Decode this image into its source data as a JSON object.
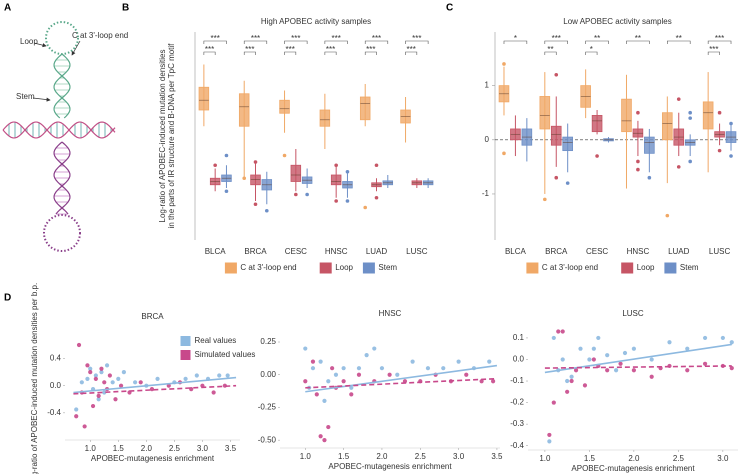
{
  "panel_labels": [
    "A",
    "B",
    "C",
    "D"
  ],
  "diagram": {
    "labels": [
      "Loop",
      "C at 3'-loop end",
      "Stem"
    ]
  },
  "chart_data": [
    {
      "type": "box",
      "title": "High APOBEC activity samples",
      "ylabel": [
        "Log-ratio of APOBEC-induced mutation densities",
        "in the parts of IR structure and B-DNA per TpC motif"
      ],
      "categories": [
        "BLCA",
        "BRCA",
        "CESC",
        "HNSC",
        "LUAD",
        "LUSC"
      ],
      "ylim": [
        -0.85,
        2.35
      ],
      "legend": "bottom",
      "significance": [
        [
          "***",
          "***"
        ],
        [
          "***",
          "***"
        ],
        [
          "***",
          "***"
        ],
        [
          "***",
          "***"
        ],
        [
          "***",
          "***"
        ],
        [
          "***",
          "***"
        ]
      ],
      "series": [
        {
          "name": "C at 3'-loop end",
          "color": "#f0a866",
          "min": [
            0.9,
            0.1,
            0.8,
            0.55,
            0.9,
            0.65
          ],
          "q1": [
            1.15,
            0.9,
            1.1,
            0.9,
            1.0,
            0.95
          ],
          "median": [
            1.3,
            1.2,
            1.17,
            1.0,
            1.25,
            1.05
          ],
          "q3": [
            1.5,
            1.4,
            1.3,
            1.15,
            1.35,
            1.15
          ],
          "max": [
            1.85,
            1.6,
            1.45,
            1.4,
            1.55,
            1.35
          ],
          "outliers": [
            [],
            [
              0.1
            ],
            [
              0.45
            ],
            [],
            [
              -0.35
            ],
            []
          ]
        },
        {
          "name": "Loop",
          "color": "#c65565",
          "min": [
            -0.1,
            -0.25,
            -0.1,
            -0.2,
            -0.1,
            -0.05
          ],
          "q1": [
            0.0,
            0.0,
            0.05,
            0.0,
            -0.03,
            0.0
          ],
          "median": [
            0.05,
            0.08,
            0.15,
            0.05,
            0.0,
            0.03
          ],
          "q3": [
            0.1,
            0.15,
            0.3,
            0.15,
            0.03,
            0.06
          ],
          "max": [
            0.25,
            0.35,
            0.55,
            0.3,
            0.1,
            0.1
          ],
          "outliers": [
            [
              0.3
            ],
            [
              -0.3,
              0.35
            ],
            [
              -0.15
            ],
            [
              0.3,
              -0.25
            ],
            [
              0.3,
              -0.2
            ],
            []
          ]
        },
        {
          "name": "Stem",
          "color": "#6d8fc7",
          "min": [
            -0.05,
            -0.3,
            -0.05,
            -0.2,
            -0.05,
            -0.05
          ],
          "q1": [
            0.05,
            -0.08,
            0.02,
            -0.05,
            0.0,
            0.0
          ],
          "median": [
            0.1,
            0.0,
            0.07,
            0.0,
            0.03,
            0.03
          ],
          "q3": [
            0.15,
            0.08,
            0.12,
            0.05,
            0.06,
            0.06
          ],
          "max": [
            0.3,
            0.2,
            0.25,
            0.2,
            0.15,
            0.1
          ],
          "outliers": [
            [
              0.45,
              -0.1
            ],
            [
              -0.4
            ],
            [
              -0.15
            ],
            [
              0.2,
              -0.25
            ],
            [],
            []
          ]
        }
      ]
    },
    {
      "type": "box",
      "title": "Low APOBEC activity samples",
      "categories": [
        "BLCA",
        "BRCA",
        "CESC",
        "HNSC",
        "LUAD",
        "LUSC"
      ],
      "ylim": [
        -1.85,
        1.99
      ],
      "yticks": [
        -1,
        0,
        1
      ],
      "zero_line": true,
      "legend": "bottom",
      "significance": [
        [
          "*"
        ],
        [
          "***",
          "**"
        ],
        [
          "**",
          "*"
        ],
        [
          "**"
        ],
        [
          "**"
        ],
        [
          "***",
          "***"
        ]
      ],
      "series": [
        {
          "name": "C at 3'-loop end",
          "color": "#f0a866",
          "min": [
            0.45,
            -1.0,
            0.4,
            -0.9,
            -0.8,
            -0.6
          ],
          "q1": [
            0.7,
            0.2,
            0.6,
            0.15,
            0.0,
            0.2
          ],
          "median": [
            0.85,
            0.45,
            0.8,
            0.35,
            0.3,
            0.5
          ],
          "q3": [
            1.0,
            0.8,
            1.0,
            0.75,
            0.5,
            0.7
          ],
          "max": [
            1.35,
            1.25,
            1.3,
            1.2,
            0.8,
            1.25
          ],
          "outliers": [
            [
              1.4,
              -0.25
            ],
            [
              -1.1
            ],
            [],
            [],
            [
              -1.4
            ],
            []
          ]
        },
        {
          "name": "Loop",
          "color": "#c65565",
          "min": [
            -0.3,
            -0.5,
            0.1,
            -0.3,
            -0.3,
            -0.1
          ],
          "q1": [
            0.0,
            -0.1,
            0.15,
            0.05,
            -0.1,
            0.05
          ],
          "median": [
            0.1,
            0.1,
            0.35,
            0.12,
            0.05,
            0.1
          ],
          "q3": [
            0.2,
            0.25,
            0.45,
            0.2,
            0.2,
            0.15
          ],
          "max": [
            0.45,
            0.8,
            0.55,
            0.35,
            0.5,
            0.3
          ],
          "outliers": [
            [],
            [
              1.2,
              -0.7
            ],
            [
              -0.3
            ],
            [
              0.5,
              -0.4,
              -0.55
            ],
            [
              0.75,
              -0.5
            ],
            [
              -0.2,
              0.5
            ]
          ]
        },
        {
          "name": "Stem",
          "color": "#6d8fc7",
          "min": [
            -0.4,
            -0.6,
            -0.05,
            -0.6,
            -0.3,
            -0.2
          ],
          "q1": [
            -0.1,
            -0.2,
            -0.02,
            -0.25,
            -0.1,
            -0.05
          ],
          "median": [
            0.05,
            -0.05,
            0.0,
            -0.05,
            -0.05,
            0.05
          ],
          "q3": [
            0.2,
            0.05,
            0.02,
            0.05,
            0.0,
            0.15
          ],
          "max": [
            0.4,
            0.3,
            0.05,
            0.2,
            0.1,
            0.3
          ],
          "outliers": [
            [],
            [
              -0.8
            ],
            [],
            [
              -0.7
            ],
            [
              0.5,
              0.4,
              -0.4
            ],
            [
              0.3,
              -0.3
            ]
          ]
        }
      ]
    },
    {
      "type": "scatter",
      "title": "BRCA",
      "ylabel": "Log-ratio of APOBEC-induced mutation densities per b.p.",
      "xlabel": "APOBEC-mutagenesis enrichment",
      "xlim": [
        0.55,
        3.67
      ],
      "ylim": [
        -0.8,
        0.85
      ],
      "xticks": [
        {
          "value": 1.0,
          "label": "1.0"
        },
        1.5,
        {
          "value": 2.0,
          "label": "2.0"
        },
        2.5,
        {
          "value": 3.0,
          "label": "3.0"
        },
        3.5
      ],
      "yticks": [
        -0.4,
        {
          "value": 0.0,
          "label": "0.0"
        },
        0.4
      ],
      "legend": "top-right",
      "series": [
        {
          "name": "Real values",
          "color": "#8db9e0",
          "line_style": "solid",
          "x": [
            0.75,
            0.85,
            0.95,
            1.0,
            1.05,
            1.1,
            1.2,
            1.25,
            1.3,
            1.4,
            1.5,
            1.6,
            1.8,
            2.0,
            2.2,
            2.5,
            2.7,
            2.9,
            3.1,
            3.3,
            3.45,
            1.15
          ],
          "y": [
            -0.35,
            0.05,
            0.1,
            0.25,
            -0.05,
            0.15,
            0.2,
            -0.1,
            0.3,
            0.05,
            0.1,
            0.2,
            0.05,
            0.0,
            0.1,
            0.05,
            0.1,
            0.15,
            0.1,
            0.15,
            0.15,
            -0.2
          ],
          "fit_x": [
            0.7,
            3.6
          ],
          "fit_y": [
            -0.1,
            0.12
          ]
        },
        {
          "name": "Simulated values",
          "color": "#c8488b",
          "line_style": "dashed",
          "x": [
            0.75,
            0.8,
            0.9,
            0.95,
            1.0,
            1.05,
            1.1,
            1.15,
            1.2,
            1.3,
            1.35,
            1.45,
            1.55,
            1.7,
            1.9,
            2.1,
            2.4,
            2.6,
            2.8,
            3.0,
            3.2,
            3.4,
            0.85,
            1.25
          ],
          "y": [
            -0.45,
            0.6,
            -0.6,
            0.3,
            0.2,
            -0.3,
            0.1,
            -0.15,
            0.25,
            -0.05,
            0.15,
            -0.2,
            0.0,
            -0.1,
            0.05,
            -0.05,
            0.0,
            0.05,
            -0.05,
            0.0,
            -0.1,
            0.0,
            -0.1,
            0.05
          ],
          "fit_x": [
            0.7,
            3.6
          ],
          "fit_y": [
            -0.12,
            0.0
          ]
        }
      ]
    },
    {
      "type": "scatter",
      "title": "HNSC",
      "xlabel": "APOBEC-mutagenesis enrichment",
      "xlim": [
        0.67,
        3.54
      ],
      "ylim": [
        -0.56,
        0.38
      ],
      "xticks": [
        {
          "value": 1.0,
          "label": "1.0"
        },
        1.5,
        {
          "value": 2.0,
          "label": "2.0"
        },
        2.5,
        {
          "value": 3.0,
          "label": "3.0"
        },
        3.5
      ],
      "yticks": [
        {
          "value": -0.5,
          "label": "-0.50"
        },
        -0.25,
        {
          "value": 0.0,
          "label": "0.00"
        },
        0.25
      ],
      "series": [
        {
          "color": "#8db9e0",
          "line_style": "solid",
          "x": [
            1.0,
            1.05,
            1.1,
            1.2,
            1.3,
            1.4,
            1.5,
            1.6,
            1.8,
            1.9,
            2.0,
            2.2,
            2.4,
            2.6,
            2.8,
            3.0,
            3.2,
            3.4,
            1.25,
            1.7
          ],
          "y": [
            0.2,
            -0.1,
            0.05,
            0.1,
            -0.05,
            0.0,
            0.05,
            -0.1,
            0.15,
            0.2,
            0.05,
            0.0,
            0.1,
            0.05,
            0.05,
            0.1,
            0.05,
            0.1,
            -0.2,
            0.05
          ],
          "fit_x": [
            1.0,
            3.5
          ],
          "fit_y": [
            -0.13,
            0.07
          ]
        },
        {
          "color": "#c8488b",
          "line_style": "dashed",
          "x": [
            1.0,
            1.1,
            1.15,
            1.2,
            1.3,
            1.35,
            1.4,
            1.5,
            1.7,
            1.9,
            2.1,
            2.3,
            2.5,
            2.7,
            2.9,
            3.1,
            3.3,
            3.45,
            1.25,
            1.6
          ],
          "y": [
            -0.05,
            0.1,
            -0.15,
            -0.47,
            -0.4,
            0.05,
            -0.1,
            -0.05,
            0.0,
            -0.05,
            0.0,
            -0.05,
            -0.05,
            0.0,
            -0.05,
            0.0,
            -0.05,
            -0.05,
            -0.5,
            -0.15
          ],
          "fit_x": [
            1.0,
            3.5
          ],
          "fit_y": [
            -0.1,
            -0.03
          ]
        }
      ]
    },
    {
      "type": "scatter",
      "title": "LUSC",
      "xlabel": "APOBEC-mutagenesis enrichment",
      "xlim": [
        0.81,
        3.17
      ],
      "ylim": [
        -0.42,
        0.16
      ],
      "xticks": [
        {
          "value": 1.0,
          "label": "1.0"
        },
        1.5,
        {
          "value": 2.0,
          "label": "2.0"
        },
        2.5,
        {
          "value": 3.0,
          "label": "3.0"
        }
      ],
      "yticks": [
        -0.4,
        -0.3,
        -0.2,
        -0.1,
        {
          "value": 0.0,
          "label": "0.0"
        },
        0.1
      ],
      "series": [
        {
          "color": "#8db9e0",
          "line_style": "solid",
          "x": [
            1.05,
            1.1,
            1.15,
            1.2,
            1.3,
            1.4,
            1.5,
            1.6,
            1.7,
            1.8,
            2.0,
            2.2,
            2.4,
            2.6,
            2.8,
            3.0,
            3.1,
            1.25,
            1.55,
            1.9
          ],
          "y": [
            -0.38,
            0.1,
            -0.05,
            0.0,
            -0.08,
            0.05,
            0.0,
            0.1,
            0.02,
            -0.05,
            0.05,
            0.0,
            0.08,
            0.05,
            0.1,
            0.1,
            0.08,
            -0.1,
            0.05,
            0.03
          ],
          "fit_x": [
            1.0,
            3.1
          ],
          "fit_y": [
            -0.06,
            0.07
          ]
        },
        {
          "color": "#c8488b",
          "line_style": "dashed",
          "x": [
            1.05,
            1.1,
            1.15,
            1.2,
            1.3,
            1.35,
            1.45,
            1.55,
            1.7,
            1.85,
            2.0,
            2.2,
            2.4,
            2.6,
            2.8,
            3.0,
            3.1,
            1.25,
            1.6,
            2.3
          ],
          "y": [
            -0.35,
            -0.2,
            0.13,
            0.13,
            -0.1,
            -0.05,
            -0.12,
            0.0,
            -0.05,
            -0.02,
            -0.05,
            -0.08,
            -0.03,
            -0.05,
            -0.02,
            -0.03,
            -0.04,
            -0.15,
            -0.03,
            -0.04
          ],
          "fit_x": [
            1.0,
            3.1
          ],
          "fit_y": [
            -0.04,
            -0.03
          ]
        }
      ]
    }
  ]
}
